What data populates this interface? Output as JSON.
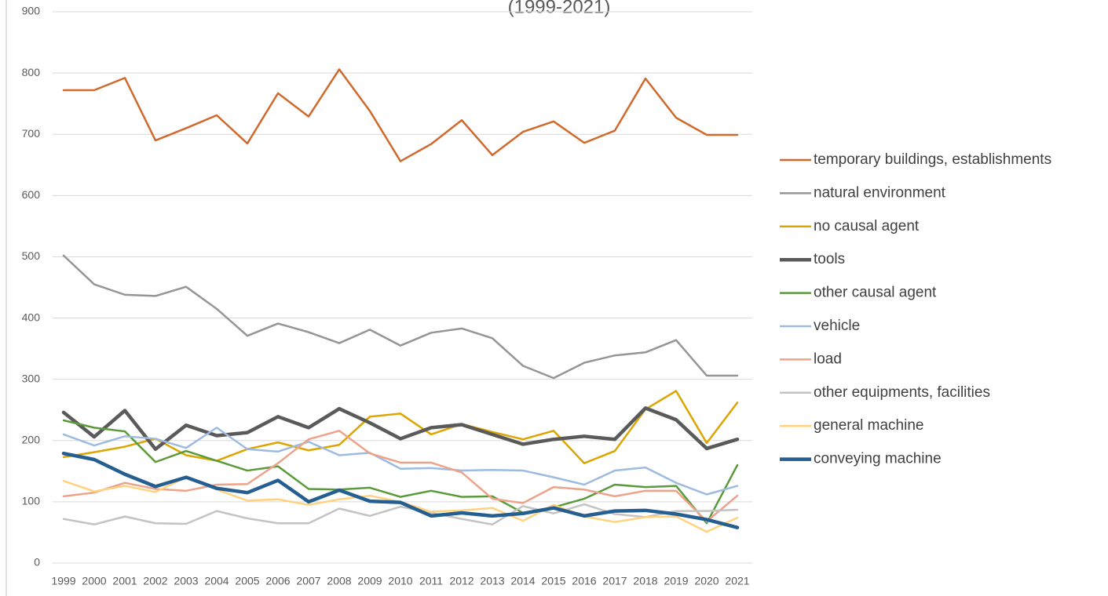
{
  "chart_data": {
    "type": "line",
    "title": "(1999-2021)",
    "categories": [
      "1999",
      "2000",
      "2001",
      "2002",
      "2003",
      "2004",
      "2005",
      "2006",
      "2007",
      "2008",
      "2009",
      "2010",
      "2011",
      "2012",
      "2013",
      "2014",
      "2015",
      "2016",
      "2017",
      "2018",
      "2019",
      "2020",
      "2021"
    ],
    "ylim": [
      0,
      900
    ],
    "yticks": [
      0,
      100,
      200,
      300,
      400,
      500,
      600,
      700,
      800,
      900
    ],
    "grid": true,
    "legend": "right",
    "series": [
      {
        "name": "temporary buildings, establishments",
        "color": "#d0692c",
        "width": 2.5,
        "values": [
          772,
          772,
          792,
          690,
          710,
          731,
          685,
          767,
          729,
          806,
          738,
          656,
          684,
          723,
          666,
          704,
          721,
          686,
          706,
          791,
          727,
          699,
          699
        ]
      },
      {
        "name": "natural environment",
        "color": "#959595",
        "width": 2.5,
        "values": [
          502,
          455,
          438,
          436,
          451,
          415,
          371,
          391,
          377,
          359,
          381,
          355,
          376,
          383,
          367,
          322,
          302,
          327,
          339,
          344,
          364,
          306,
          306
        ]
      },
      {
        "name": "no causal agent",
        "color": "#dca500",
        "width": 2.5,
        "values": [
          173,
          181,
          190,
          203,
          176,
          167,
          186,
          197,
          184,
          193,
          239,
          244,
          210,
          227,
          214,
          202,
          216,
          163,
          183,
          251,
          281,
          196,
          262
        ]
      },
      {
        "name": "tools",
        "color": "#5a5a5a",
        "width": 4.5,
        "values": [
          246,
          206,
          249,
          186,
          225,
          208,
          213,
          239,
          221,
          252,
          229,
          203,
          221,
          226,
          210,
          194,
          202,
          207,
          202,
          253,
          234,
          187,
          202
        ]
      },
      {
        "name": "other causal agent",
        "color": "#5a9a3a",
        "width": 2.5,
        "values": [
          233,
          221,
          215,
          165,
          183,
          167,
          151,
          158,
          121,
          120,
          123,
          108,
          118,
          108,
          109,
          82,
          91,
          105,
          128,
          124,
          126,
          65,
          160
        ]
      },
      {
        "name": "vehicle",
        "color": "#9dbbe0",
        "width": 2.5,
        "values": [
          210,
          192,
          207,
          203,
          188,
          221,
          186,
          182,
          198,
          176,
          180,
          154,
          155,
          151,
          152,
          151,
          140,
          128,
          151,
          156,
          131,
          112,
          126
        ]
      },
      {
        "name": "load",
        "color": "#eda28a",
        "width": 2.5,
        "values": [
          109,
          115,
          131,
          121,
          118,
          128,
          129,
          163,
          202,
          216,
          179,
          164,
          164,
          148,
          105,
          98,
          124,
          120,
          109,
          118,
          118,
          68,
          110
        ]
      },
      {
        "name": "other equipments, facilities",
        "color": "#c3c3c3",
        "width": 2.5,
        "values": [
          72,
          63,
          76,
          65,
          64,
          85,
          73,
          65,
          65,
          89,
          77,
          92,
          82,
          72,
          63,
          93,
          81,
          96,
          80,
          75,
          85,
          85,
          87
        ]
      },
      {
        "name": "general machine",
        "color": "#ffd27f",
        "width": 2.5,
        "values": [
          134,
          117,
          126,
          116,
          140,
          120,
          102,
          104,
          95,
          104,
          110,
          100,
          84,
          86,
          90,
          69,
          95,
          76,
          67,
          75,
          76,
          51,
          74
        ]
      },
      {
        "name": "conveying machine",
        "color": "#255e91",
        "width": 4.5,
        "values": [
          179,
          169,
          145,
          125,
          140,
          122,
          115,
          135,
          100,
          119,
          101,
          99,
          77,
          82,
          77,
          81,
          90,
          77,
          85,
          86,
          80,
          71,
          58
        ]
      }
    ]
  }
}
